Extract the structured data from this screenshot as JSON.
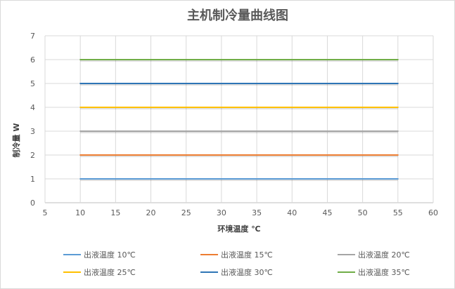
{
  "chart_data": {
    "type": "line",
    "title": "主机制冷量曲线图",
    "xlabel": "环境温度 ℃",
    "ylabel": "制冷量 W",
    "xlim": [
      5,
      60
    ],
    "ylim": [
      0,
      7
    ],
    "xticks": [
      5,
      10,
      15,
      20,
      25,
      30,
      35,
      40,
      45,
      50,
      55,
      60
    ],
    "yticks": [
      0,
      1,
      2,
      3,
      4,
      5,
      6,
      7
    ],
    "grid": true,
    "legend_position": "bottom",
    "x": [
      10,
      15,
      20,
      25,
      30,
      35,
      40,
      45,
      50,
      55
    ],
    "series": [
      {
        "name": "出液温度 10℃",
        "color": "#5B9BD5",
        "values": [
          1,
          1,
          1,
          1,
          1,
          1,
          1,
          1,
          1,
          1
        ]
      },
      {
        "name": "出液温度 15℃",
        "color": "#ED7D31",
        "values": [
          2,
          2,
          2,
          2,
          2,
          2,
          2,
          2,
          2,
          2
        ]
      },
      {
        "name": "出液温度 20℃",
        "color": "#A5A5A5",
        "values": [
          3,
          3,
          3,
          3,
          3,
          3,
          3,
          3,
          3,
          3
        ]
      },
      {
        "name": "出液温度 25℃",
        "color": "#FFC000",
        "values": [
          4,
          4,
          4,
          4,
          4,
          4,
          4,
          4,
          4,
          4
        ]
      },
      {
        "name": "出液温度 30℃",
        "color": "#2E75B6",
        "values": [
          5,
          5,
          5,
          5,
          5,
          5,
          5,
          5,
          5,
          5
        ]
      },
      {
        "name": "出液温度 35℃",
        "color": "#70AD47",
        "values": [
          6,
          6,
          6,
          6,
          6,
          6,
          6,
          6,
          6,
          6
        ]
      }
    ]
  }
}
